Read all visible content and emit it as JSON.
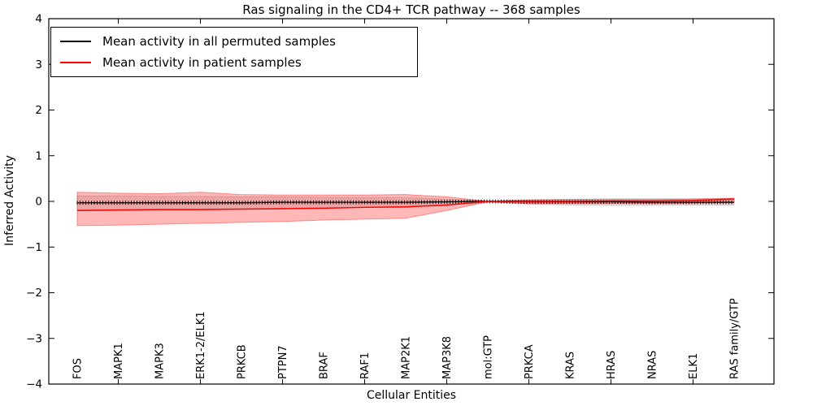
{
  "chart_data": {
    "type": "line",
    "title": "Ras signaling in the CD4+ TCR pathway -- 368 samples",
    "xlabel": "Cellular Entities",
    "ylabel": "Inferred Activity",
    "ylim": [
      -4,
      4
    ],
    "yticks": [
      4,
      3,
      2,
      1,
      0,
      -1,
      -2,
      -3,
      -4
    ],
    "ytick_labels": [
      "4",
      "3",
      "2",
      "1",
      "0",
      "−1",
      "−2",
      "−3",
      "−4"
    ],
    "grid": false,
    "legend_position": "upper left",
    "x_tick_label_rotation": 90,
    "categories": [
      "FOS",
      "MAPK1",
      "MAPK3",
      "ERK1-2/ELK1",
      "PRKCB",
      "PTPN7",
      "BRAF",
      "RAF1",
      "MAP2K1",
      "MAP3K8",
      "mol:GTP",
      "PRKCA",
      "KRAS",
      "HRAS",
      "NRAS",
      "ELK1",
      "RAS family/GTP"
    ],
    "series": [
      {
        "name": "Mean activity in all permuted samples",
        "color": "#000000",
        "band_color": "rgba(0,0,0,0.10)",
        "band_edge": "rgba(0,0,0,0.14)",
        "values": [
          -0.03,
          -0.03,
          -0.03,
          -0.03,
          -0.03,
          -0.02,
          -0.02,
          -0.02,
          -0.02,
          -0.01,
          0.0,
          -0.01,
          -0.01,
          -0.01,
          -0.02,
          -0.02,
          -0.02
        ],
        "band_upper": [
          0.12,
          0.12,
          0.11,
          0.11,
          0.1,
          0.1,
          0.09,
          0.08,
          0.08,
          0.05,
          0.01,
          0.04,
          0.05,
          0.06,
          0.06,
          0.06,
          0.06
        ],
        "band_lower": [
          -0.18,
          -0.18,
          -0.17,
          -0.17,
          -0.16,
          -0.15,
          -0.14,
          -0.13,
          -0.13,
          -0.08,
          -0.01,
          -0.06,
          -0.08,
          -0.09,
          -0.09,
          -0.08,
          -0.08
        ]
      },
      {
        "name": "Mean activity in patient samples",
        "color": "#ff0000",
        "band_color": "rgba(255,0,0,0.28)",
        "band_edge": "rgba(255,0,0,0.38)",
        "values": [
          -0.2,
          -0.19,
          -0.18,
          -0.18,
          -0.17,
          -0.16,
          -0.15,
          -0.13,
          -0.12,
          -0.08,
          0.0,
          0.0,
          0.0,
          0.01,
          0.01,
          0.02,
          0.05
        ],
        "band_upper": [
          0.2,
          0.18,
          0.17,
          0.2,
          0.15,
          0.14,
          0.14,
          0.14,
          0.15,
          0.1,
          0.0,
          0.03,
          0.04,
          0.04,
          0.04,
          0.05,
          0.07
        ],
        "band_lower": [
          -0.53,
          -0.52,
          -0.5,
          -0.48,
          -0.46,
          -0.44,
          -0.41,
          -0.39,
          -0.37,
          -0.2,
          -0.01,
          -0.05,
          -0.05,
          -0.05,
          -0.05,
          -0.04,
          -0.03
        ]
      }
    ]
  }
}
